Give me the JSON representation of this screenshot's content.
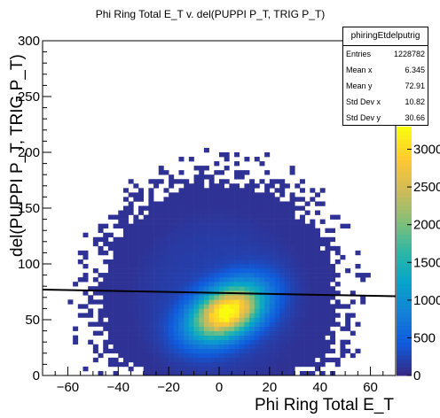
{
  "chart_data": {
    "type": "heatmap",
    "title": "Phi Ring Total E_T v. del(PUPPI P_T, TRIG P_T)",
    "xlabel": "Phi Ring Total E_T",
    "ylabel": "del(PUPPI P_T, TRIG P_T)",
    "xlim": [
      -70,
      70
    ],
    "ylim": [
      0,
      300
    ],
    "xticks": [
      -60,
      -40,
      -20,
      0,
      20,
      40,
      60
    ],
    "yticks": [
      0,
      50,
      100,
      150,
      200,
      250,
      300
    ],
    "zticks": [
      0,
      500,
      1000,
      1500,
      2000,
      2500,
      3000
    ],
    "zlim": [
      0,
      3300
    ],
    "peak": {
      "x": 3,
      "y": 57
    },
    "profile_line": {
      "x": [
        -70,
        70
      ],
      "y": [
        77,
        71
      ]
    },
    "stats": {
      "name": "phiringEtdelputrig",
      "rows": [
        {
          "label": "Entries",
          "value": "1228782"
        },
        {
          "label": "Mean x",
          "value": "6.345"
        },
        {
          "label": "Mean y",
          "value": "72.91"
        },
        {
          "label": "Std Dev x",
          "value": "10.82"
        },
        {
          "label": "Std Dev y",
          "value": "30.66"
        }
      ]
    },
    "palette": [
      "#352a87",
      "#0f5cdd",
      "#1481d6",
      "#06a4ca",
      "#2eb7a4",
      "#87bf77",
      "#d1bb59",
      "#fec832",
      "#f9fb0e"
    ]
  }
}
